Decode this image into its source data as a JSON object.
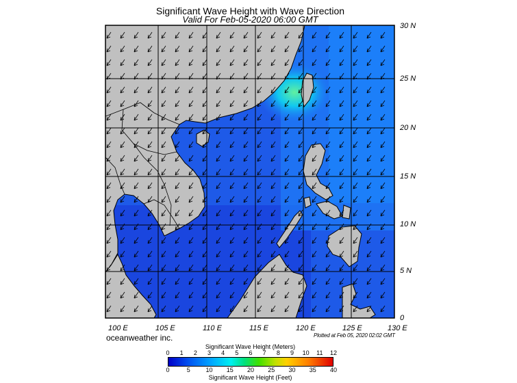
{
  "title": "Significant Wave Height with Wave Direction",
  "subtitle": "Valid For Feb-05-2020 06:00 GMT",
  "lat_labels": [
    "30 N",
    "25 N",
    "20 N",
    "15 N",
    "10 N",
    "5 N",
    "0"
  ],
  "lon_labels": [
    "100 E",
    "105 E",
    "110 E",
    "115 E",
    "120 E",
    "125 E",
    "130 E"
  ],
  "credit": "oceanweather inc.",
  "plotted": "Plotted at Feb 05, 2020 02:02 GMT",
  "colorbar": {
    "title_top": "Significant Wave Height (Meters)",
    "meters_ticks": [
      "0",
      "1",
      "2",
      "3",
      "4",
      "5",
      "6",
      "7",
      "8",
      "9",
      "10",
      "11",
      "12"
    ],
    "feet_ticks": [
      "0",
      "5",
      "10",
      "15",
      "20",
      "25",
      "30",
      "35",
      "40"
    ],
    "title_bottom": "Significant Wave Height (Feet)"
  },
  "colors": {
    "land": "#c0c0c0",
    "ocean_deep": "#1a3fe0",
    "ocean_mid": "#1e64f0",
    "ocean_high": "#0fa5ff",
    "peak": "#40e8a0"
  }
}
